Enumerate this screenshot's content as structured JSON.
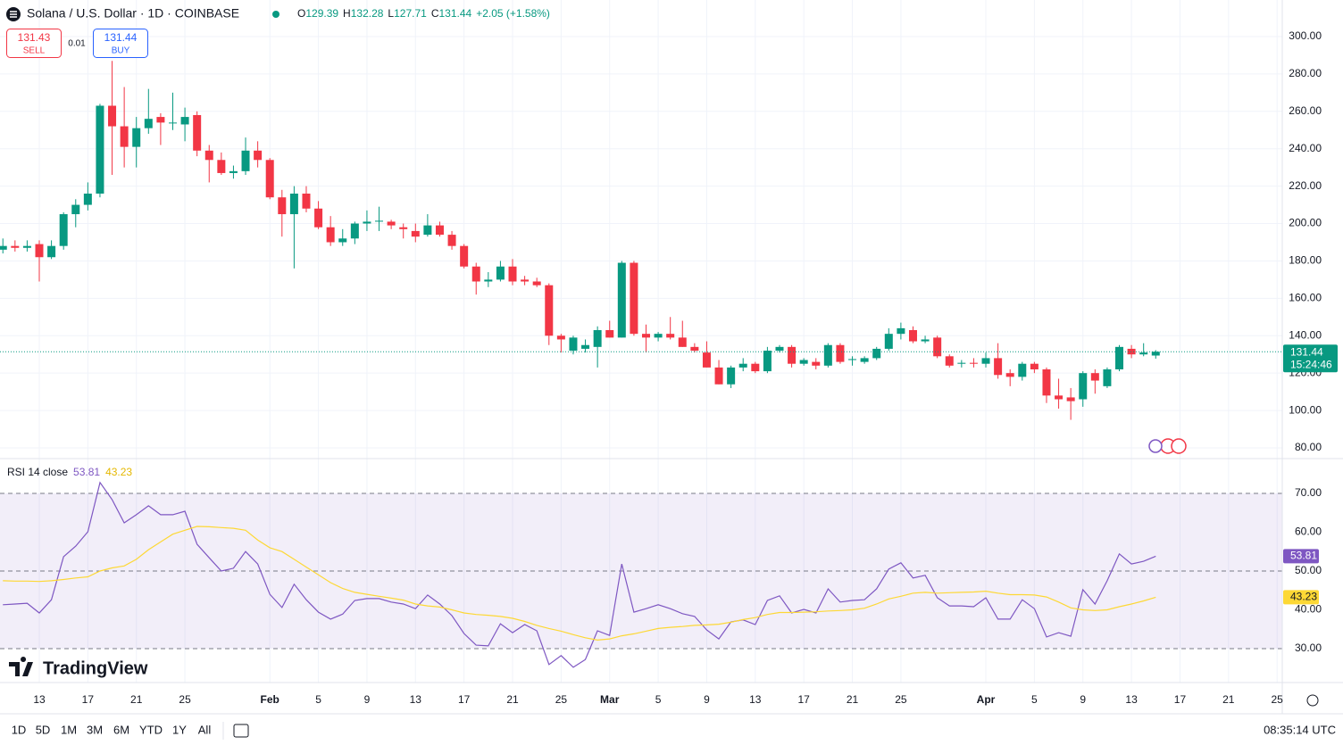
{
  "header": {
    "symbol": "Solana / U.S. Dollar · 1D · COINBASE",
    "ohlc_labels": [
      "O",
      "H",
      "L",
      "C"
    ],
    "change": "+2.05 (+1.58%)"
  },
  "trade": {
    "sell": 131.43,
    "sell_label": "SELL",
    "spread": 0.01,
    "buy": 131.44,
    "buy_label": "BUY"
  },
  "logo": "TradingView",
  "toolbar": {
    "ranges": [
      "1D",
      "5D",
      "1M",
      "3M",
      "6M",
      "YTD",
      "1Y",
      "All"
    ],
    "time": "08:35:14 UTC"
  },
  "chart_data": [
    {
      "type": "candlestick",
      "up_color": "#089981",
      "down_color": "#f23645",
      "grid": true,
      "countdown": "15:24:46",
      "categories": [
        null,
        null,
        null,
        "13",
        null,
        null,
        null,
        "17",
        null,
        null,
        null,
        "21",
        null,
        null,
        null,
        "25",
        null,
        null,
        null,
        null,
        null,
        null,
        "Feb",
        null,
        null,
        null,
        "5",
        null,
        null,
        null,
        "9",
        null,
        null,
        null,
        "13",
        null,
        null,
        null,
        "17",
        null,
        null,
        null,
        "21",
        null,
        null,
        null,
        "25",
        null,
        null,
        null,
        "Mar",
        null,
        null,
        null,
        "5",
        null,
        null,
        null,
        "9",
        null,
        null,
        null,
        "13",
        null,
        null,
        null,
        "17",
        null,
        null,
        null,
        "21",
        null,
        null,
        null,
        "25",
        null,
        null,
        null,
        null,
        null,
        null,
        "Apr",
        null,
        null,
        null,
        "5",
        null,
        null,
        null,
        "9",
        null,
        null,
        null,
        "13",
        null,
        null,
        null,
        "17",
        null,
        null,
        null,
        "21",
        null,
        null,
        null,
        "25"
      ],
      "open": [
        186,
        188,
        187,
        189,
        182,
        188,
        205,
        210,
        216,
        263,
        252,
        241,
        251,
        257,
        254,
        253,
        258,
        239,
        234,
        227,
        228,
        239,
        234,
        214,
        205,
        216,
        208,
        198,
        190,
        192,
        200,
        201,
        201,
        198,
        196,
        194,
        199,
        194,
        188,
        177,
        169,
        170,
        177,
        170,
        169,
        167,
        140,
        132,
        133,
        134,
        143,
        139,
        179,
        141,
        139,
        141,
        139,
        134,
        131,
        123,
        114,
        123,
        125,
        121,
        132,
        134,
        125,
        126,
        124,
        135,
        127,
        126,
        128,
        133,
        141,
        143,
        137,
        139,
        129,
        125,
        125.5,
        125,
        128,
        120,
        118,
        125,
        122,
        108,
        107,
        106,
        120,
        113,
        122,
        133,
        130,
        129.39,
        null,
        null,
        null,
        null,
        null,
        null,
        null,
        null,
        null,
        null
      ],
      "high": [
        192,
        191,
        191,
        191,
        191,
        206,
        213,
        222,
        264,
        287,
        273,
        257,
        272,
        259,
        270,
        262,
        260,
        242,
        238,
        231,
        246,
        244,
        235,
        218,
        220,
        220,
        212,
        204,
        197,
        201,
        207,
        209,
        202,
        200,
        200,
        205,
        201,
        196,
        189,
        179,
        174,
        180,
        181,
        172,
        171,
        168,
        141,
        140,
        138,
        145,
        148,
        180,
        180,
        146,
        142,
        150,
        148,
        136,
        137,
        127,
        124,
        128,
        126,
        134,
        135,
        135,
        128,
        128,
        136,
        136,
        129,
        129,
        134,
        144,
        147,
        145,
        140,
        140,
        130,
        127,
        128,
        131,
        136,
        122,
        126,
        126,
        123,
        117,
        112,
        121,
        122,
        123,
        135,
        135,
        136,
        132.28,
        null,
        null,
        null,
        null,
        null,
        null,
        null,
        null,
        null,
        null
      ],
      "low": [
        184,
        185,
        185,
        169,
        181,
        186,
        198,
        207,
        214,
        226,
        230,
        230,
        248,
        242,
        250,
        244,
        236,
        222,
        226,
        224,
        226,
        230,
        213,
        193,
        176,
        206,
        197,
        188,
        188,
        189,
        196,
        196,
        197,
        192,
        190,
        193,
        193,
        186,
        176,
        162,
        166,
        169,
        167,
        167,
        166,
        135,
        131,
        130,
        131,
        123,
        139,
        139,
        140,
        131,
        137,
        138,
        134,
        131,
        123,
        114,
        112,
        121,
        120,
        120,
        131,
        123,
        124,
        122,
        123,
        125,
        124,
        125,
        127,
        132,
        138,
        136,
        136,
        128,
        123,
        123,
        123,
        123,
        117,
        113,
        116,
        120,
        104,
        101,
        95,
        102,
        109,
        112,
        121,
        128,
        129,
        127.71,
        null,
        null,
        null,
        null,
        null,
        null,
        null,
        null,
        null,
        null
      ],
      "close": [
        188,
        187,
        188,
        182,
        188,
        205,
        210,
        216,
        263,
        252,
        241,
        251,
        256,
        254,
        254,
        257,
        239,
        234,
        227,
        228,
        239,
        234,
        214,
        205,
        216,
        208,
        198,
        190,
        192,
        200,
        201,
        201.5,
        199,
        197,
        193,
        199,
        194,
        188,
        177,
        169,
        170,
        177,
        169,
        169,
        167,
        140,
        138,
        139,
        135,
        143,
        139,
        179,
        141,
        139,
        141,
        139,
        134,
        132,
        123,
        114,
        123,
        125,
        121,
        132,
        134,
        125,
        127,
        124,
        135,
        126,
        127.5,
        128,
        133,
        141,
        144,
        137,
        138,
        129,
        124,
        125.5,
        125,
        128,
        119,
        118,
        125,
        122,
        108,
        106,
        105,
        120,
        116,
        122,
        134,
        130,
        131,
        131.44,
        null,
        null,
        null,
        null,
        null,
        null,
        null,
        null,
        null,
        null
      ],
      "ylim": [
        74.75,
        319.55
      ],
      "yticks": [
        {
          "value": 80,
          "label": "80.00"
        },
        {
          "value": 100,
          "label": "100.00"
        },
        {
          "value": 120,
          "label": "120.00"
        },
        {
          "value": 140,
          "label": "140.00"
        },
        {
          "value": 160,
          "label": "160.00"
        },
        {
          "value": 180,
          "label": "180.00"
        },
        {
          "value": 200,
          "label": "200.00"
        },
        {
          "value": 220,
          "label": "220.00"
        },
        {
          "value": 240,
          "label": "240.00"
        },
        {
          "value": 260,
          "label": "260.00"
        },
        {
          "value": 280,
          "label": "280.00"
        },
        {
          "value": 300,
          "label": "300.00"
        }
      ]
    },
    {
      "type": "line",
      "title": "RSI 14 close",
      "levels": [
        70,
        50,
        30
      ],
      "band_color": "#7e57c2",
      "series": [
        {
          "color": "#7e57c2",
          "values": [
            41.3,
            41.5,
            41.7,
            39.2,
            42.6,
            53.7,
            56.4,
            60.1,
            72.8,
            68.4,
            62.4,
            64.5,
            66.8,
            64.5,
            64.5,
            65.4,
            56.9,
            53.4,
            50,
            50.7,
            55,
            51.8,
            44,
            40.6,
            46.6,
            42.6,
            39.4,
            37.6,
            38.9,
            42.4,
            42.9,
            42.9,
            42,
            41.5,
            40.3,
            43.8,
            41.5,
            38.5,
            33.9,
            30.9,
            30.7,
            36.4,
            34.1,
            36.2,
            34.6,
            25.9,
            28.2,
            25.2,
            27.2,
            34.6,
            33.4,
            51.8,
            39.4,
            40.3,
            41.3,
            40.3,
            39,
            38.3,
            34.8,
            32.5,
            36.9,
            37.4,
            36.2,
            42.4,
            43.6,
            39.2,
            40.1,
            39.2,
            45.4,
            42,
            42.4,
            42.6,
            45.4,
            50.5,
            52.1,
            48.2,
            48.9,
            43.1,
            41,
            41,
            40.8,
            43.1,
            37.6,
            37.6,
            42.6,
            40.3,
            33,
            34.1,
            33.2,
            45.2,
            41.5,
            47.5,
            54.4,
            51.8,
            52.5,
            53.81,
            null,
            null,
            null,
            null,
            null,
            null,
            null,
            null,
            null,
            null
          ]
        },
        {
          "color": "#fdd835",
          "values": [
            47.5,
            47.4,
            47.4,
            47.3,
            47.5,
            47.8,
            48.2,
            48.5,
            50,
            50.8,
            51.3,
            53,
            55.5,
            57.5,
            59.5,
            60.5,
            61.5,
            61.4,
            61.2,
            61,
            60.5,
            58,
            56,
            55,
            53,
            51,
            49,
            47,
            45.5,
            44.5,
            44,
            43.5,
            43,
            42.5,
            41.5,
            41,
            40.7,
            40,
            39.2,
            38.8,
            38.6,
            38.3,
            37.8,
            37,
            36,
            35.2,
            34.5,
            33.6,
            32.8,
            32.2,
            32.5,
            33.3,
            33.8,
            34.5,
            35.2,
            35.5,
            35.7,
            36,
            36.1,
            36.3,
            36.8,
            37.5,
            38,
            38.8,
            39.3,
            39.3,
            39.4,
            39.5,
            39.7,
            39.8,
            40,
            40.4,
            41.5,
            42.8,
            43.5,
            44.3,
            44.5,
            44.3,
            44.4,
            44.5,
            44.6,
            44.8,
            44.3,
            43.9,
            43.9,
            43.8,
            43.3,
            42,
            40.5,
            40,
            39.8,
            40,
            40.8,
            41.5,
            42.3,
            43.23,
            null,
            null,
            null,
            null,
            null,
            null,
            null,
            null,
            null,
            null
          ]
        }
      ],
      "ylim": [
        21.26,
        78.73
      ],
      "yticks": [
        {
          "value": 30,
          "label": "30.00"
        },
        {
          "value": 40,
          "label": "40.00"
        },
        {
          "value": 50,
          "label": "50.00"
        },
        {
          "value": 60,
          "label": "60.00"
        },
        {
          "value": 70,
          "label": "70.00"
        }
      ]
    }
  ]
}
